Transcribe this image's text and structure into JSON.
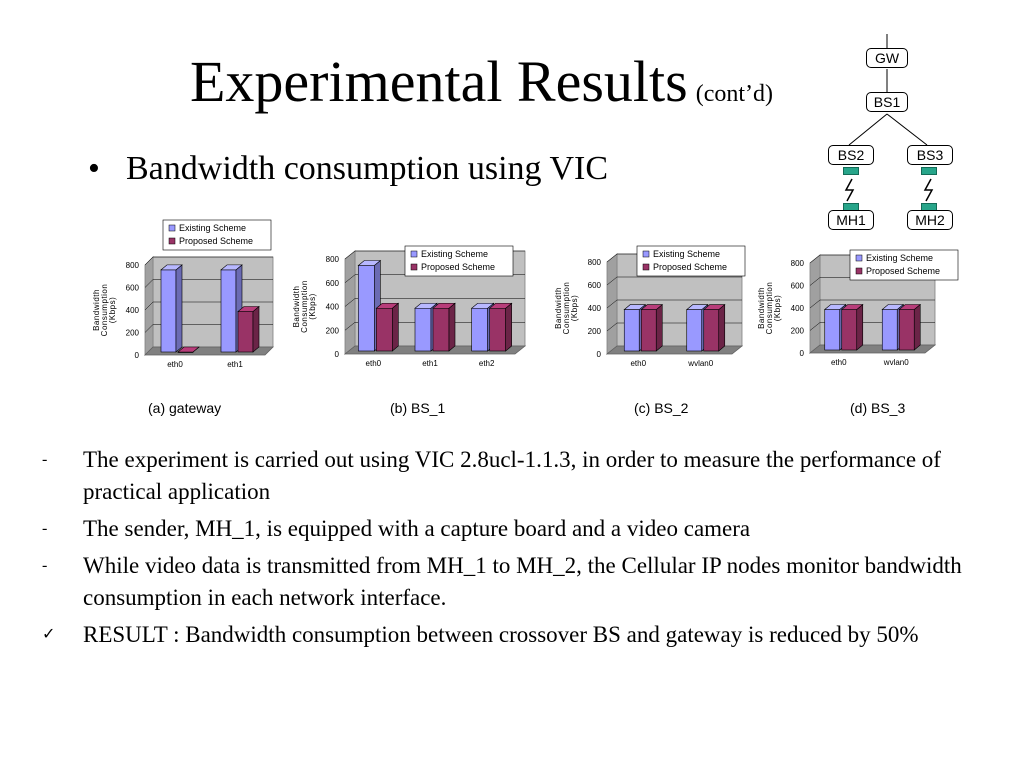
{
  "slide": {
    "title": "Experimental Results",
    "title_suffix": "(cont’d)",
    "bullet": "Bandwidth consumption using VIC",
    "items": [
      {
        "marker": "-",
        "text": "The experiment is carried out using VIC 2.8ucl-1.1.3, in order to measure the performance of practical application"
      },
      {
        "marker": "-",
        "text": "The sender, MH_1, is equipped with a capture board and a video camera"
      },
      {
        "marker": "-",
        "text": "While video data is transmitted from MH_1 to MH_2, the Cellular IP nodes monitor bandwidth consumption in each network interface."
      },
      {
        "marker": "✓",
        "text": "RESULT : Bandwidth consumption between crossover BS and gateway is reduced by 50%"
      }
    ]
  },
  "topology": {
    "gw": "GW",
    "bs1": "BS1",
    "bs2": "BS2",
    "bs3": "BS3",
    "mh1": "MH1",
    "mh2": "MH2",
    "antenna_color": "#27a58a"
  },
  "colors": {
    "existing": "#9999ff",
    "proposed": "#993366",
    "plot_bg": "#c0c0c0"
  },
  "chart_data": [
    {
      "type": "bar",
      "caption": "(a) gateway",
      "ylabel": "Bandwidth Consumption (Kbps)",
      "ylim": [
        0,
        800
      ],
      "yticks": [
        "800",
        "600",
        "400",
        "200",
        "0"
      ],
      "categories": [
        "eth0",
        "eth1"
      ],
      "series": [
        {
          "name": "Existing Scheme",
          "values": [
            730,
            730
          ]
        },
        {
          "name": "Proposed Scheme",
          "values": [
            0,
            360
          ]
        }
      ],
      "legend": "top-right"
    },
    {
      "type": "bar",
      "caption": "(b) BS_1",
      "ylabel": "Bandwidth Consumption (Kbps)",
      "ylim": [
        0,
        800
      ],
      "yticks": [
        "800",
        "600",
        "400",
        "200",
        "0"
      ],
      "categories": [
        "eth0",
        "eth1",
        "eth2"
      ],
      "series": [
        {
          "name": "Existing Scheme",
          "values": [
            720,
            360,
            360
          ]
        },
        {
          "name": "Proposed Scheme",
          "values": [
            360,
            360,
            360
          ]
        }
      ],
      "legend": "top-right"
    },
    {
      "type": "bar",
      "caption": "(c) BS_2",
      "ylabel": "Bandwidth Consumption (Kbps)",
      "ylim": [
        0,
        800
      ],
      "yticks": [
        "800",
        "600",
        "400",
        "200",
        "0"
      ],
      "categories": [
        "eth0",
        "wvlan0"
      ],
      "series": [
        {
          "name": "Existing Scheme",
          "values": [
            360,
            360
          ]
        },
        {
          "name": "Proposed Scheme",
          "values": [
            360,
            360
          ]
        }
      ],
      "legend": "top-right"
    },
    {
      "type": "bar",
      "caption": "(d) BS_3",
      "ylabel": "Bandwidth Consumption (Kbps)",
      "ylim": [
        0,
        800
      ],
      "yticks": [
        "800",
        "600",
        "400",
        "200",
        "0"
      ],
      "categories": [
        "eth0",
        "wvlan0"
      ],
      "series": [
        {
          "name": "Existing Scheme",
          "values": [
            360,
            360
          ]
        },
        {
          "name": "Proposed Scheme",
          "values": [
            360,
            360
          ]
        }
      ],
      "legend": "top-right"
    }
  ]
}
